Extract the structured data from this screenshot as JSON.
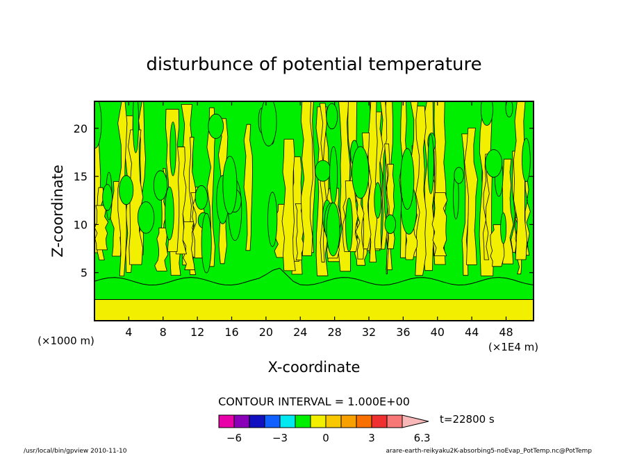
{
  "chart_data": {
    "type": "heatmap",
    "title": "disturbunce of potential temperature",
    "xlabel": "X-coordinate",
    "ylabel": "Z-coordinate",
    "x_unit_left": "(×1000 m)",
    "x_unit_right": "(×1E4 m)",
    "xlim": [
      0,
      51.2
    ],
    "ylim": [
      0,
      22.8
    ],
    "x_ticks": [
      "4",
      "8",
      "12",
      "16",
      "20",
      "24",
      "28",
      "32",
      "36",
      "40",
      "44",
      "48"
    ],
    "y_ticks": [
      "5",
      "10",
      "15",
      "20"
    ],
    "contour_interval": "CONTOUR INTERVAL = 1.000E+00",
    "time_label": "t=22800 s",
    "colorbar": {
      "tick_labels": [
        "−6",
        "−3",
        "0",
        "3",
        "6.3"
      ],
      "tick_values": [
        -6,
        -3,
        0,
        3,
        6.3
      ],
      "colors": [
        "#e800a8",
        "#8a00b8",
        "#1010c0",
        "#1060ff",
        "#00e8f0",
        "#00ee00",
        "#f2f000",
        "#f8c800",
        "#f8a000",
        "#f87000",
        "#f03030",
        "#f87878",
        "#f8b8b8"
      ]
    },
    "field_colors": {
      "positive": "#f2f000",
      "negative": "#00ee00"
    }
  },
  "footer": {
    "left": "/usr/local/bin/gpview  2010-11-10",
    "right": "arare-earth-reikyaku2K-absorbing5-noEvap_PotTemp.nc@PotTemp"
  }
}
